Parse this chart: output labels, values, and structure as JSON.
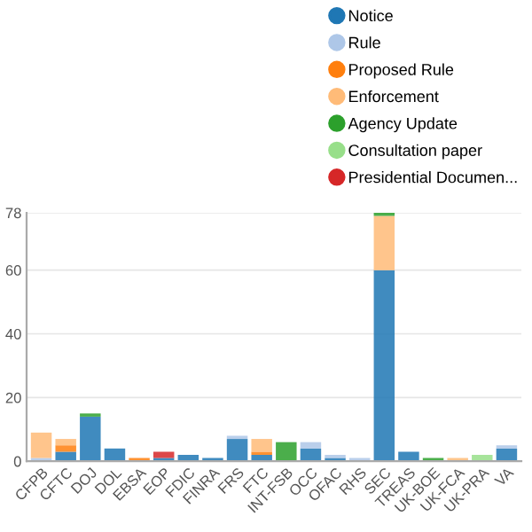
{
  "chart_data": {
    "type": "bar",
    "stacked": true,
    "categories": [
      "CFPB",
      "CFTC",
      "DOJ",
      "DOL",
      "EBSA",
      "EOP",
      "FDIC",
      "FINRA",
      "FRS",
      "FTC",
      "INT-FSB",
      "OCC",
      "OFAC",
      "RHS",
      "SEC",
      "TREAS",
      "UK-BOE",
      "UK-FCA",
      "UK-PRA",
      "VA"
    ],
    "series": [
      {
        "name": "Notice",
        "color": "#1f77b4",
        "values": [
          0,
          3,
          14,
          4,
          0,
          1,
          2,
          1,
          7,
          2,
          0,
          4,
          1,
          0,
          60,
          3,
          0,
          0,
          0,
          4
        ]
      },
      {
        "name": "Rule",
        "color": "#aec7e8",
        "values": [
          1,
          0,
          0,
          0,
          0,
          0,
          0,
          0,
          1,
          0,
          0,
          2,
          1,
          1,
          0,
          0,
          0,
          0,
          0,
          1
        ]
      },
      {
        "name": "Proposed Rule",
        "color": "#ff7f0e",
        "values": [
          0,
          2,
          0,
          0,
          1,
          0,
          0,
          0,
          0,
          1,
          0,
          0,
          0,
          0,
          0,
          0,
          0,
          0,
          0,
          0
        ]
      },
      {
        "name": "Enforcement",
        "color": "#ffbb78",
        "values": [
          8,
          2,
          0,
          0,
          0,
          0,
          0,
          0,
          0,
          4,
          0,
          0,
          0,
          0,
          17,
          0,
          0,
          1,
          0,
          0
        ]
      },
      {
        "name": "Agency Update",
        "color": "#2ca02c",
        "values": [
          0,
          0,
          1,
          0,
          0,
          0,
          0,
          0,
          0,
          0,
          6,
          0,
          0,
          0,
          1,
          0,
          1,
          0,
          0,
          0
        ]
      },
      {
        "name": "Consultation paper",
        "color": "#98df8a",
        "values": [
          0,
          0,
          0,
          0,
          0,
          0,
          0,
          0,
          0,
          0,
          0,
          0,
          0,
          0,
          0,
          0,
          0,
          0,
          2,
          0
        ]
      },
      {
        "name": "Presidential Documen...",
        "color": "#d62728",
        "values": [
          0,
          0,
          0,
          0,
          0,
          2,
          0,
          0,
          0,
          0,
          0,
          0,
          0,
          0,
          0,
          0,
          0,
          0,
          0,
          0
        ]
      }
    ],
    "ylim": [
      0,
      78
    ],
    "yticks": [
      0,
      20,
      40,
      60,
      78
    ],
    "grid": "y",
    "legend": "top right"
  }
}
